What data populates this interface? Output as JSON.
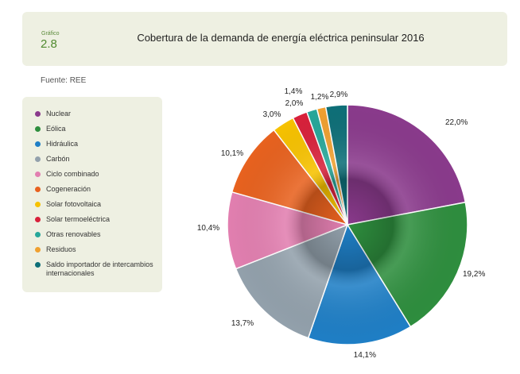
{
  "header": {
    "figure_label": "Gráfico",
    "figure_number": "2.8"
  },
  "source": "Fuente: REE",
  "chart_data": {
    "type": "pie",
    "title": "Cobertura de la demanda de energía eléctrica peninsular 2016",
    "legend_position": "left",
    "series": [
      {
        "name": "Nuclear",
        "value": 22.0,
        "label": "22,0%",
        "color": "#8a3a8c"
      },
      {
        "name": "Eólica",
        "value": 19.2,
        "label": "19,2%",
        "color": "#2e8e3e"
      },
      {
        "name": "Hidráulica",
        "value": 14.1,
        "label": "14,1%",
        "color": "#1f7fc6"
      },
      {
        "name": "Carbón",
        "value": 13.7,
        "label": "13,7%",
        "color": "#93a1ac"
      },
      {
        "name": "Ciclo combinado",
        "value": 10.4,
        "label": "10,4%",
        "color": "#e27fb0"
      },
      {
        "name": "Cogeneración",
        "value": 10.1,
        "label": "10,1%",
        "color": "#e8621f"
      },
      {
        "name": "Solar fotovoltaica",
        "value": 3.0,
        "label": "3,0%",
        "color": "#f7c200"
      },
      {
        "name": "Solar termoeléctrica",
        "value": 2.0,
        "label": "2,0%",
        "color": "#d8213b"
      },
      {
        "name": "Otras renovables",
        "value": 1.4,
        "label": "1,4%",
        "color": "#27a79a"
      },
      {
        "name": "Residuos",
        "value": 1.2,
        "label": "1,2%",
        "color": "#f0a030"
      },
      {
        "name": "Saldo importador de intercambios internacionales",
        "value": 2.9,
        "label": "2,9%",
        "color": "#0e6f78"
      }
    ]
  }
}
